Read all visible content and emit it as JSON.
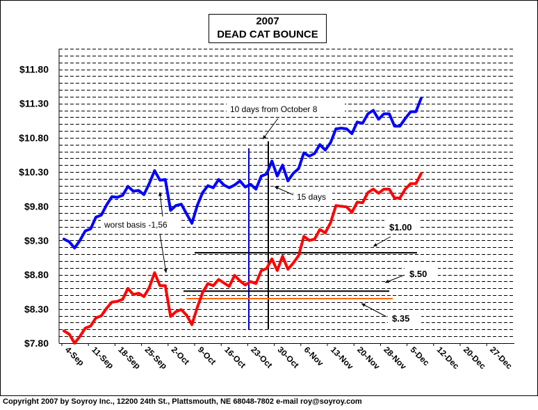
{
  "chart_data": {
    "type": "line",
    "title": [
      "2007",
      "DEAD CAT BOUNCE"
    ],
    "xlabel": "",
    "ylabel": "",
    "ylim": [
      7.8,
      12.1
    ],
    "yticks": [
      "$7.80",
      "$8.30",
      "$8.80",
      "$9.30",
      "$9.80",
      "$10.30",
      "$10.80",
      "$11.30",
      "$11.80"
    ],
    "ytick_values": [
      7.8,
      8.3,
      8.8,
      9.3,
      9.8,
      10.3,
      10.8,
      11.3,
      11.8
    ],
    "xticks": [
      "4-Sep",
      "11-Sep",
      "18-Sep",
      "25-Sep",
      "2-Oct",
      "9-Oct",
      "16-Oct",
      "23-Oct",
      "30-Oct",
      "6-Nov",
      "13-Nov",
      "20-Nov",
      "28-Nov",
      "5-Dec",
      "12-Dec",
      "20-Dec",
      "27-Dec"
    ],
    "grid": "horizontal dashed",
    "series": [
      {
        "color": "#0000ff",
        "values": [
          9.32,
          9.28,
          9.19,
          9.3,
          9.44,
          9.47,
          9.64,
          9.67,
          9.82,
          9.94,
          9.93,
          9.96,
          10.09,
          10.02,
          10.03,
          9.97,
          10.13,
          10.32,
          10.18,
          10.19,
          9.74,
          9.81,
          9.83,
          9.69,
          9.55,
          9.81,
          10.0,
          10.1,
          10.07,
          10.19,
          10.11,
          10.07,
          10.11,
          10.17,
          10.08,
          10.12,
          10.05,
          10.24,
          10.27,
          10.46,
          10.24,
          10.4,
          10.17,
          10.28,
          10.35,
          10.58,
          10.53,
          10.57,
          10.7,
          10.62,
          10.73,
          10.93,
          10.94,
          10.93,
          10.86,
          11.03,
          11.01,
          11.15,
          11.2,
          11.07,
          11.15,
          11.15,
          10.97,
          10.97,
          11.08,
          11.18,
          11.18,
          11.38
        ]
      },
      {
        "color": "#ff0000",
        "values": [
          7.98,
          7.93,
          7.8,
          7.9,
          8.02,
          8.05,
          8.17,
          8.2,
          8.31,
          8.4,
          8.41,
          8.44,
          8.6,
          8.51,
          8.53,
          8.48,
          8.61,
          8.83,
          8.64,
          8.64,
          8.19,
          8.26,
          8.29,
          8.21,
          8.07,
          8.32,
          8.54,
          8.67,
          8.64,
          8.73,
          8.68,
          8.63,
          8.79,
          8.71,
          8.65,
          8.7,
          8.67,
          8.86,
          8.89,
          9.03,
          8.86,
          9.07,
          8.88,
          8.97,
          9.08,
          9.36,
          9.3,
          9.32,
          9.46,
          9.41,
          9.56,
          9.81,
          9.8,
          9.79,
          9.71,
          9.86,
          9.85,
          10.0,
          10.05,
          9.99,
          10.05,
          10.05,
          9.92,
          9.92,
          10.05,
          10.13,
          10.13,
          10.28
        ]
      }
    ],
    "annotations": [
      {
        "text": "10 days from October 8"
      },
      {
        "text": "15 days"
      },
      {
        "text": "worst basis -1,56"
      },
      {
        "text": "$1.00"
      },
      {
        "text": "$.50"
      },
      {
        "text": "$.35"
      }
    ],
    "reference_lines": [
      {
        "color": "#0000cc",
        "orientation": "vertical"
      },
      {
        "color": "#000000",
        "orientation": "vertical"
      },
      {
        "color": "#000000",
        "orientation": "horizontal"
      },
      {
        "color": "#000000",
        "orientation": "horizontal"
      },
      {
        "color": "#ff6600",
        "orientation": "horizontal"
      }
    ]
  },
  "footer": "Copyright 2007 by Soyroy Inc., 12200 24th St., Plattsmouth, NE 68048-7802 e-mail roy@soyroy.com"
}
